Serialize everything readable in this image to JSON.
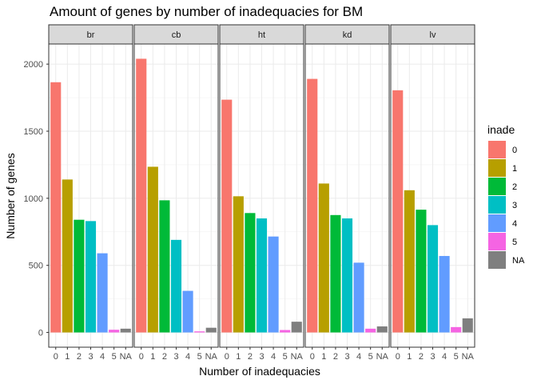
{
  "chart_data": {
    "type": "bar",
    "title": "Amount of genes by number of inadequacies for BM",
    "xlabel": "Number of inadequacies",
    "ylabel": "Number of genes",
    "categories": [
      "0",
      "1",
      "2",
      "3",
      "4",
      "5",
      "NA"
    ],
    "ylim": [
      -110,
      2150
    ],
    "yticks": [
      0,
      500,
      1000,
      1500,
      2000
    ],
    "grid": true,
    "facets": [
      {
        "label": "br",
        "values": [
          1865,
          1140,
          840,
          830,
          590,
          20,
          28
        ]
      },
      {
        "label": "cb",
        "values": [
          2040,
          1235,
          985,
          690,
          310,
          8,
          35
        ]
      },
      {
        "label": "ht",
        "values": [
          1735,
          1015,
          890,
          850,
          715,
          18,
          80
        ]
      },
      {
        "label": "kd",
        "values": [
          1890,
          1110,
          875,
          850,
          520,
          28,
          45
        ]
      },
      {
        "label": "lv",
        "values": [
          1805,
          1060,
          915,
          800,
          570,
          40,
          105
        ]
      }
    ],
    "legend": {
      "title": "inade",
      "position": "right",
      "entries": [
        {
          "label": "0",
          "color": "#F8766D"
        },
        {
          "label": "1",
          "color": "#B79F00"
        },
        {
          "label": "2",
          "color": "#00BA38"
        },
        {
          "label": "3",
          "color": "#00BFC4"
        },
        {
          "label": "4",
          "color": "#619CFF"
        },
        {
          "label": "5",
          "color": "#F564E3"
        },
        {
          "label": "NA",
          "color": "#7F7F7F"
        }
      ]
    }
  }
}
